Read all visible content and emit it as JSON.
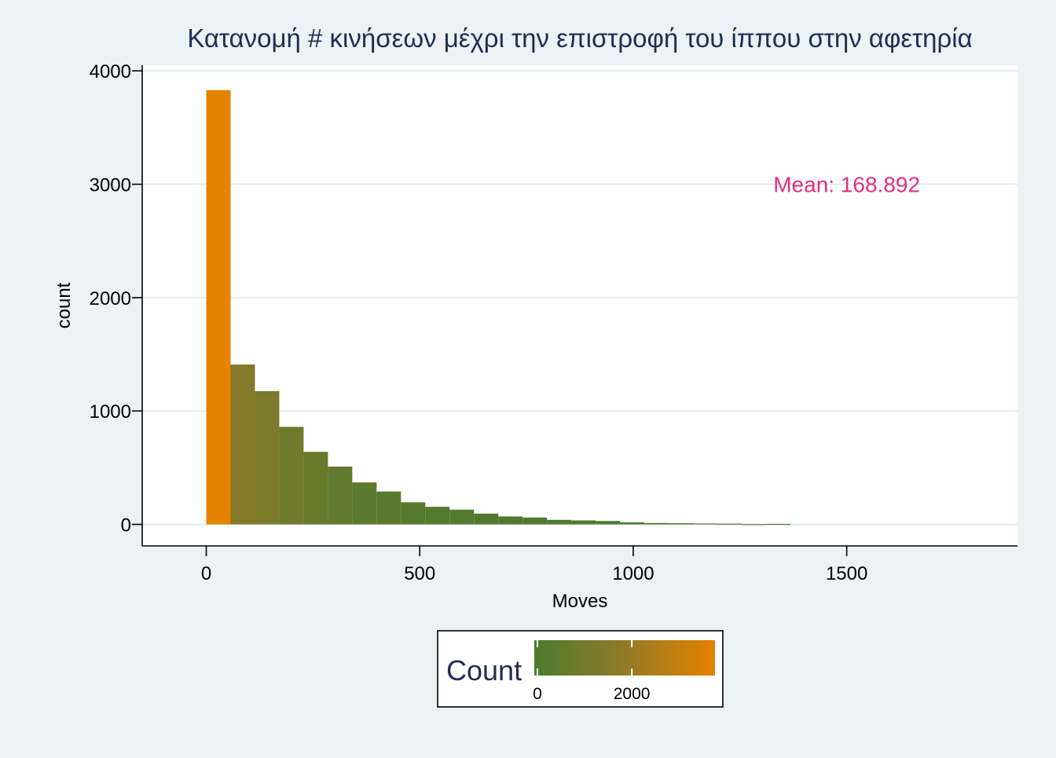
{
  "chart_data": {
    "type": "bar",
    "title": "Κατανομή # κινήσεων μέχρι την επιστροφή του ίππου στην αφετηρία",
    "xlabel": "Moves",
    "ylabel": "count",
    "xlim": [
      -150,
      1900
    ],
    "ylim": [
      -190,
      4050
    ],
    "x_ticks": [
      0,
      500,
      1000,
      1500
    ],
    "x_tick_labels": [
      "0",
      "500",
      "1000",
      "1500"
    ],
    "y_ticks": [
      0,
      1000,
      2000,
      3000,
      4000
    ],
    "y_tick_labels": [
      "0",
      "1000",
      "2000",
      "3000",
      "4000"
    ],
    "grid": true,
    "bin_width": 57,
    "bin_start": 0,
    "values": [
      3830,
      1410,
      1175,
      860,
      640,
      510,
      370,
      290,
      195,
      155,
      130,
      95,
      70,
      60,
      40,
      35,
      30,
      18,
      12,
      10,
      8,
      6,
      2,
      4,
      0,
      0,
      0,
      0,
      0,
      0,
      0,
      0
    ],
    "color_scale": {
      "low_color": "#4e7a2e",
      "mid_color": "#8a7a2a",
      "high_color": "#e58200",
      "min": 0,
      "max": 3830
    },
    "annotation": {
      "text": "Mean: 168.892",
      "x": 1500,
      "y": 3000,
      "color": "#e2307a"
    },
    "legend": {
      "title": "Count",
      "position": "bottom",
      "tick_values": [
        0,
        2000
      ],
      "tick_labels": [
        "0",
        "2000"
      ]
    }
  }
}
